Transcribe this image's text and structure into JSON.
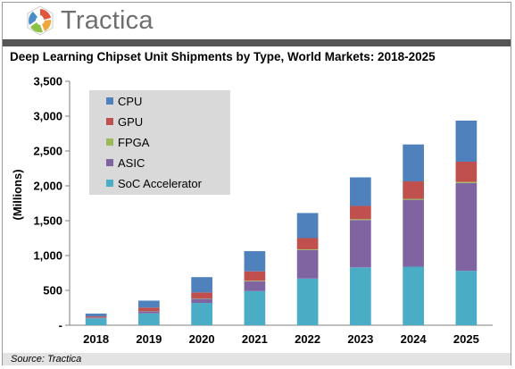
{
  "brand": {
    "name": "Tractica",
    "logo_icon": "hexagon-swirl-icon"
  },
  "source": "Source: Tractica",
  "colors": {
    "CPU": "#4f81bd",
    "GPU": "#c0504d",
    "FPGA": "#9bbb59",
    "ASIC": "#8064a2",
    "SoC Accelerator": "#4bacc6",
    "legend_bg": "#d9d9d9",
    "axis": "#7f7f7f"
  },
  "chart_data": {
    "type": "bar",
    "stacked": true,
    "title": "Deep Learning Chipset Unit Shipments by Type, World Markets: 2018-2025",
    "xlabel": "",
    "ylabel": "(Millions)",
    "ylim": [
      0,
      3500
    ],
    "yticks": [
      0,
      500,
      1000,
      1500,
      2000,
      2500,
      3000,
      3500
    ],
    "ytick_labels": [
      "-",
      "500",
      "1,000",
      "1,500",
      "2,000",
      "2,500",
      "3,000",
      "3,500"
    ],
    "categories": [
      "2018",
      "2019",
      "2020",
      "2021",
      "2022",
      "2023",
      "2024",
      "2025"
    ],
    "series": [
      {
        "name": "SoC Accelerator",
        "values": [
          100,
          170,
          320,
          490,
          670,
          830,
          840,
          780
        ]
      },
      {
        "name": "ASIC",
        "values": [
          10,
          30,
          60,
          140,
          410,
          680,
          960,
          1260
        ]
      },
      {
        "name": "FPGA",
        "values": [
          2,
          3,
          5,
          8,
          10,
          12,
          14,
          16
        ]
      },
      {
        "name": "GPU",
        "values": [
          15,
          50,
          85,
          135,
          160,
          190,
          250,
          290
        ]
      },
      {
        "name": "CPU",
        "values": [
          40,
          100,
          220,
          290,
          360,
          410,
          530,
          590
        ]
      }
    ],
    "legend": [
      "CPU",
      "GPU",
      "FPGA",
      "ASIC",
      "SoC Accelerator"
    ],
    "legend_position": "top-left",
    "grid": false
  }
}
